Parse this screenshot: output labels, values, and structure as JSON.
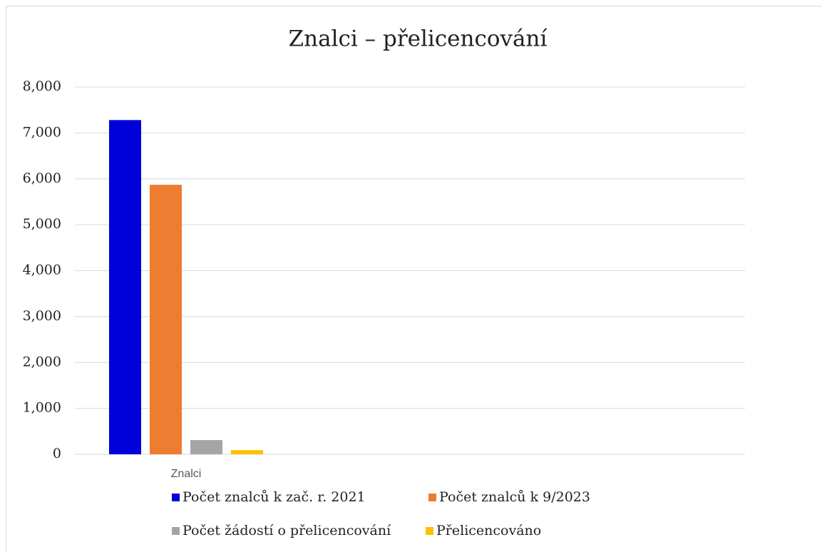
{
  "chart_data": {
    "type": "bar",
    "title": "Znalci – přelicencování",
    "categories": [
      "Znalci"
    ],
    "series": [
      {
        "name": "Počet znalců k zač. r. 2021",
        "color": "#0000d8",
        "values": [
          7280
        ]
      },
      {
        "name": "Počet znalců k 9/2023",
        "color": "#ed7d31",
        "values": [
          5870
        ]
      },
      {
        "name": "Počet žádostí o přelicencování",
        "color": "#a5a5a5",
        "values": [
          310
        ]
      },
      {
        "name": "Přelicencováno",
        "color": "#ffc000",
        "values": [
          90
        ]
      }
    ],
    "ylim": [
      0,
      8000
    ],
    "yticks": [
      0,
      {
        "value": 1000,
        "label": "1,000"
      },
      {
        "value": 2000,
        "label": "2,000"
      },
      {
        "value": 3000,
        "label": "3,000"
      },
      {
        "value": 4000,
        "label": "4,000"
      },
      {
        "value": 5000,
        "label": "5,000"
      },
      {
        "value": 6000,
        "label": "6,000"
      },
      {
        "value": 7000,
        "label": "7,000"
      },
      {
        "value": 8000,
        "label": "8,000"
      }
    ],
    "grid": true,
    "legend": "bottom"
  }
}
